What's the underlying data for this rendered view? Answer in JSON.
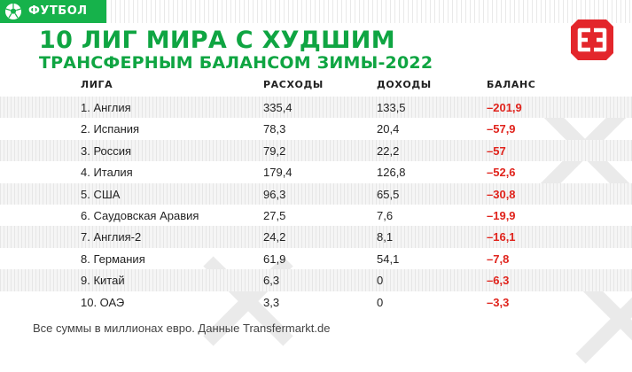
{
  "header": {
    "section": "ФУТБОЛ",
    "title": "10 ЛИГ МИРА С ХУДШИМ",
    "subtitle": "ТРАНСФЕРНЫМ БАЛАНСОМ ЗИМЫ-2022"
  },
  "colors": {
    "brand_green": "#16b24b",
    "title_green": "#0fa542",
    "negative_red": "#e0231c",
    "logo_red": "#e3262b"
  },
  "icons": {
    "section": "soccer-ball-icon",
    "logo": "brand-logo-icon",
    "watermark": "x-watermark-icon"
  },
  "table": {
    "columns": [
      "ЛИГА",
      "РАСХОДЫ",
      "ДОХОДЫ",
      "БАЛАНС"
    ],
    "rows": [
      {
        "league": "1. Англия",
        "expenses": "335,4",
        "income": "133,5",
        "balance": "–201,9"
      },
      {
        "league": "2. Испания",
        "expenses": "78,3",
        "income": "20,4",
        "balance": "–57,9"
      },
      {
        "league": "3. Россия",
        "expenses": "79,2",
        "income": "22,2",
        "balance": "–57"
      },
      {
        "league": "4. Италия",
        "expenses": "179,4",
        "income": "126,8",
        "balance": "–52,6"
      },
      {
        "league": "5. США",
        "expenses": "96,3",
        "income": "65,5",
        "balance": "–30,8"
      },
      {
        "league": "6. Саудовская Аравия",
        "expenses": "27,5",
        "income": "7,6",
        "balance": "–19,9"
      },
      {
        "league": "7. Англия-2",
        "expenses": "24,2",
        "income": "8,1",
        "balance": "–16,1"
      },
      {
        "league": "8. Германия",
        "expenses": "61,9",
        "income": "54,1",
        "balance": "–7,8"
      },
      {
        "league": "9. Китай",
        "expenses": "6,3",
        "income": "0",
        "balance": "–6,3"
      },
      {
        "league": "10. ОАЭ",
        "expenses": "3,3",
        "income": "0",
        "balance": "–3,3"
      }
    ]
  },
  "footnote": "Все суммы в миллионах евро. Данные Transfermarkt.de"
}
